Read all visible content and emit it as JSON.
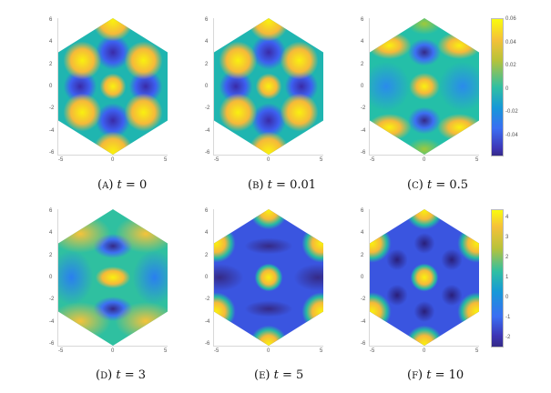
{
  "figure": {
    "panels": [
      {
        "id": "a",
        "letter": "A",
        "t": "0"
      },
      {
        "id": "b",
        "letter": "B",
        "t": "0.01"
      },
      {
        "id": "c",
        "letter": "C",
        "t": "0.5"
      },
      {
        "id": "d",
        "letter": "D",
        "t": "3"
      },
      {
        "id": "e",
        "letter": "E",
        "t": "5"
      },
      {
        "id": "f",
        "letter": "F",
        "t": "10"
      }
    ],
    "xticks": [
      "-5",
      "0",
      "5"
    ],
    "yticks": [
      "6",
      "4",
      "2",
      "0",
      "-2",
      "-4",
      "-6"
    ],
    "colorbar_top": {
      "ticks": [
        "0.06",
        "0.04",
        "0.02",
        "0",
        "-0.02",
        "-0.04"
      ]
    },
    "colorbar_bottom": {
      "ticks": [
        "4",
        "3",
        "2",
        "1",
        "0",
        "-1",
        "-2"
      ]
    }
  },
  "chart_data": [
    {
      "type": "heatmap",
      "title": "(A) t = 0",
      "xlim": [
        -5.5,
        5.5
      ],
      "ylim": [
        -6.3,
        6.3
      ],
      "domain": "hexagon",
      "colormap": "parula",
      "clim": [
        -0.055,
        0.06
      ]
    },
    {
      "type": "heatmap",
      "title": "(B) t = 0.01",
      "xlim": [
        -5.5,
        5.5
      ],
      "ylim": [
        -6.3,
        6.3
      ],
      "domain": "hexagon",
      "colormap": "parula",
      "clim": [
        -0.055,
        0.06
      ]
    },
    {
      "type": "heatmap",
      "title": "(C) t = 0.5",
      "xlim": [
        -5.5,
        5.5
      ],
      "ylim": [
        -6.3,
        6.3
      ],
      "domain": "hexagon",
      "colormap": "parula",
      "clim": [
        -0.055,
        0.06
      ],
      "colorbar_ticks": [
        0.06,
        0.04,
        0.02,
        0,
        -0.02,
        -0.04
      ]
    },
    {
      "type": "heatmap",
      "title": "(D) t = 3",
      "xlim": [
        -5.5,
        5.5
      ],
      "ylim": [
        -6.3,
        6.3
      ],
      "domain": "hexagon",
      "colormap": "parula",
      "clim": [
        -2.3,
        4.7
      ]
    },
    {
      "type": "heatmap",
      "title": "(E) t = 5",
      "xlim": [
        -5.5,
        5.5
      ],
      "ylim": [
        -6.3,
        6.3
      ],
      "domain": "hexagon",
      "colormap": "parula",
      "clim": [
        -2.3,
        4.7
      ]
    },
    {
      "type": "heatmap",
      "title": "(F) t = 10",
      "xlim": [
        -5.5,
        5.5
      ],
      "ylim": [
        -6.3,
        6.3
      ],
      "domain": "hexagon",
      "colormap": "parula",
      "clim": [
        -2.3,
        4.7
      ],
      "colorbar_ticks": [
        4,
        3,
        2,
        1,
        0,
        -1,
        -2
      ]
    }
  ]
}
